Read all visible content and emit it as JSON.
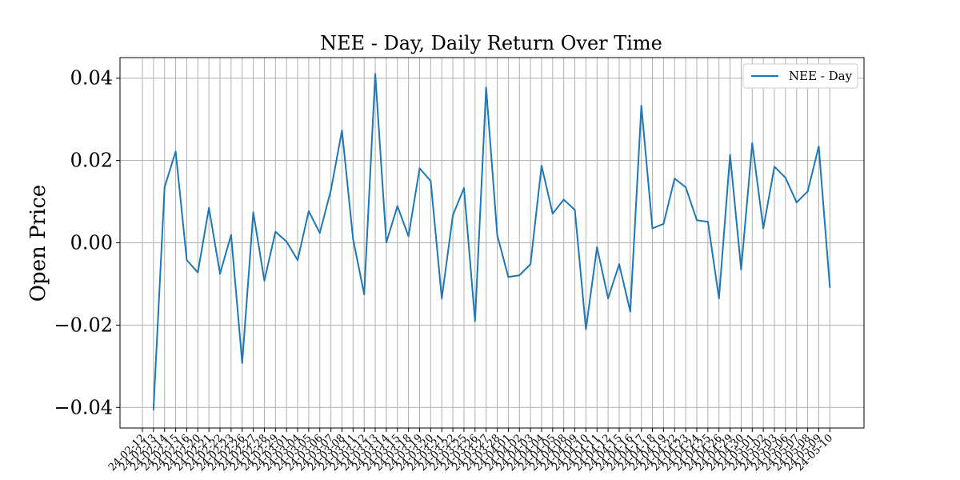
{
  "chart_data": {
    "type": "line",
    "title": "NEE - Day, Daily Return Over Time",
    "xlabel": "",
    "ylabel": "Open Price",
    "ylim": [
      -0.045,
      0.045
    ],
    "yticks": [
      -0.04,
      -0.02,
      0.0,
      0.02,
      0.04
    ],
    "ytick_labels": [
      "−0.04",
      "−0.02",
      "0.00",
      "0.02",
      "0.04"
    ],
    "grid": true,
    "legend": {
      "position": "top-right",
      "entries": [
        "NEE - Day"
      ]
    },
    "x": [
      "24-02-12",
      "24-02-13",
      "24-02-14",
      "24-02-15",
      "24-02-16",
      "24-02-20",
      "24-02-21",
      "24-02-22",
      "24-02-23",
      "24-02-26",
      "24-02-27",
      "24-02-28",
      "24-02-29",
      "24-03-01",
      "24-03-04",
      "24-03-05",
      "24-03-06",
      "24-03-07",
      "24-03-08",
      "24-03-11",
      "24-03-12",
      "24-03-13",
      "24-03-14",
      "24-03-15",
      "24-03-18",
      "24-03-19",
      "24-03-20",
      "24-03-21",
      "24-03-22",
      "24-03-25",
      "24-03-26",
      "24-03-27",
      "24-03-28",
      "24-04-01",
      "24-04-02",
      "24-04-03",
      "24-04-04",
      "24-04-05",
      "24-04-08",
      "24-04-09",
      "24-04-10",
      "24-04-11",
      "24-04-12",
      "24-04-15",
      "24-04-16",
      "24-04-17",
      "24-04-18",
      "24-04-19",
      "24-04-22",
      "24-04-23",
      "24-04-24",
      "24-04-25",
      "24-04-26",
      "24-04-29",
      "24-04-30",
      "24-05-01",
      "24-05-02",
      "24-05-03",
      "24-05-06",
      "24-05-07",
      "24-05-08",
      "24-05-09",
      "24-05-10"
    ],
    "series": [
      {
        "name": "NEE - Day",
        "color": "#1f77b4",
        "values": [
          null,
          -0.0405,
          0.0135,
          0.0222,
          -0.0042,
          -0.0072,
          0.0085,
          -0.0075,
          0.0019,
          -0.0292,
          0.0074,
          -0.0092,
          0.0027,
          0.0003,
          -0.0042,
          0.0077,
          0.0024,
          0.0128,
          0.0273,
          0.0009,
          -0.0125,
          0.041,
          0.0001,
          0.0089,
          0.0016,
          0.0181,
          0.015,
          -0.0135,
          0.0067,
          0.0133,
          -0.019,
          0.0377,
          0.0019,
          -0.0083,
          -0.0079,
          -0.0052,
          0.0187,
          0.0071,
          0.0105,
          0.008,
          -0.021,
          -0.0011,
          -0.0135,
          -0.0052,
          -0.0167,
          0.0333,
          0.0035,
          0.0046,
          0.0156,
          0.0135,
          0.0055,
          0.0051,
          -0.0135,
          0.0214,
          -0.0065,
          0.0242,
          0.0035,
          0.0185,
          0.0158,
          0.0098,
          0.0125,
          0.0234,
          -0.0108
        ]
      }
    ]
  }
}
